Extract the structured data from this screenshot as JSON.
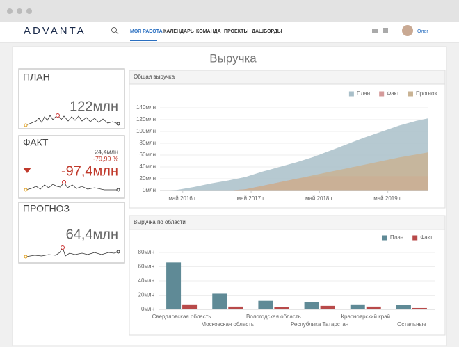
{
  "nav": {
    "logo": "ADVANTA",
    "menu": [
      "МОЯ РАБОТА",
      "КАЛЕНДАРЬ",
      "КОМАНДА",
      "ПРОЕКТЫ",
      "ДАШБОРДЫ"
    ],
    "user": "Олег"
  },
  "title": "Выручка",
  "kpis": [
    {
      "title": "ПЛАН",
      "value": "122млн"
    },
    {
      "title": "ФАКТ",
      "sub_value": "24,4млн",
      "sub_change": "-79,99 %",
      "value": "-97,4млн"
    },
    {
      "title": "ПРОГНОЗ",
      "value": "64,4млн"
    }
  ],
  "charts": [
    {
      "type": "area",
      "title": "Общая выручка",
      "x": [
        0,
        3,
        6,
        9,
        12,
        15,
        18,
        21,
        24,
        27,
        30,
        33,
        36,
        39,
        42,
        45,
        47
      ],
      "xlim": [
        0,
        47
      ],
      "xticks": [
        {
          "value": 4,
          "label": "май 2016 г."
        },
        {
          "value": 16,
          "label": "май 2017 г."
        },
        {
          "value": 28,
          "label": "май 2018 г."
        },
        {
          "value": 40,
          "label": "май 2019 г."
        }
      ],
      "ylim": [
        0,
        140
      ],
      "yticks": [
        {
          "value": 0,
          "label": "0млн"
        },
        {
          "value": 20,
          "label": "20млн"
        },
        {
          "value": 40,
          "label": "40млн"
        },
        {
          "value": 60,
          "label": "60млн"
        },
        {
          "value": 80,
          "label": "80млн"
        },
        {
          "value": 100,
          "label": "100млн"
        },
        {
          "value": 120,
          "label": "120млн"
        },
        {
          "value": 140,
          "label": "140млн"
        }
      ],
      "series": [
        {
          "name": "План",
          "color": "#a9bfc9",
          "values": [
            0,
            1,
            6,
            12,
            17,
            23,
            32,
            40,
            48,
            57,
            68,
            79,
            90,
            100,
            110,
            118,
            122
          ]
        },
        {
          "name": "Факт",
          "color": "#d49a9a",
          "values": [
            0,
            0,
            0,
            0,
            0,
            2,
            8,
            14,
            20,
            24,
            24.4,
            24.4,
            24.4,
            24.4,
            24.4,
            24.4,
            24.4
          ]
        },
        {
          "name": "Прогноз",
          "color": "#c9b394",
          "values": [
            0,
            0,
            0,
            0,
            0,
            2,
            8,
            14,
            20,
            26,
            32,
            38,
            44,
            50,
            56,
            61,
            64.4
          ]
        }
      ]
    },
    {
      "type": "bar",
      "title": "Выручка по области",
      "categories": [
        "Свердловская область",
        "Московская область",
        "Вологодская область",
        "Республика Татарстан",
        "Красноярский край",
        "Остальные"
      ],
      "ylim": [
        0,
        80
      ],
      "yticks": [
        {
          "value": 0,
          "label": "0млн"
        },
        {
          "value": 20,
          "label": "20млн"
        },
        {
          "value": 40,
          "label": "40млн"
        },
        {
          "value": 60,
          "label": "60млн"
        },
        {
          "value": 80,
          "label": "80млн"
        }
      ],
      "series": [
        {
          "name": "План",
          "color": "#5f8a96",
          "values": [
            66,
            22,
            12,
            10,
            7,
            6
          ]
        },
        {
          "name": "Факт",
          "color": "#b84a4a",
          "values": [
            7,
            4,
            3,
            5,
            4,
            2
          ]
        }
      ]
    }
  ]
}
